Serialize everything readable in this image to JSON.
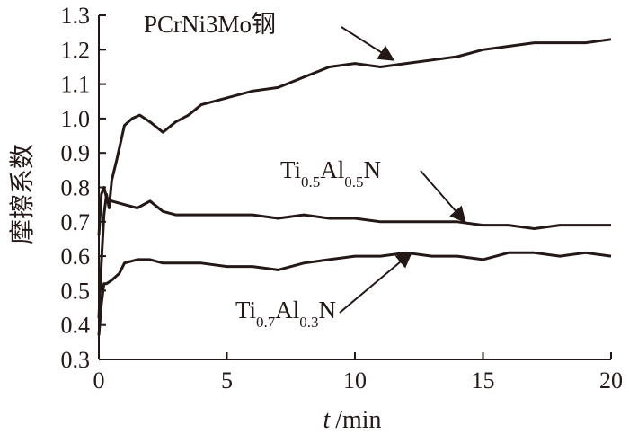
{
  "chart_data": {
    "type": "line",
    "title": "",
    "xlabel_var": "t",
    "xlabel_unit": "/min",
    "ylabel": "摩擦系数",
    "xlim": [
      0,
      20
    ],
    "ylim": [
      0.3,
      1.3
    ],
    "xticks": [
      "0",
      "5",
      "10",
      "15",
      "20"
    ],
    "yticks": [
      "0.3",
      "0.4",
      "0.5",
      "0.6",
      "0.7",
      "0.8",
      "0.9",
      "1.0",
      "1.1",
      "1.2",
      "1.3"
    ],
    "grid": false,
    "line_color": "#231815",
    "annotations": [
      {
        "base": "PCrNi3Mo钢",
        "points_to": {
          "x": 11.5,
          "y": 1.17
        }
      },
      {
        "base": "Ti",
        "sub1": "0.5",
        "mid": "Al",
        "sub2": "0.5",
        "tail": "N",
        "points_to": {
          "x": 14.3,
          "y": 0.7
        }
      },
      {
        "base": "Ti",
        "sub1": "0.7",
        "mid": "Al",
        "sub2": "0.3",
        "tail": "N",
        "points_to": {
          "x": 12.2,
          "y": 0.61
        }
      }
    ],
    "series": [
      {
        "x": [
          0,
          0.1,
          0.2,
          0.3,
          0.4,
          0.5,
          0.7,
          1.0,
          1.3,
          1.6,
          2.0,
          2.5,
          3.0,
          3.5,
          4.0,
          5.0,
          6.0,
          7.0,
          8.0,
          9.0,
          10.0,
          11.0,
          12.0,
          13.0,
          14.0,
          15.0,
          16.0,
          17.0,
          18.0,
          19.0,
          20.0
        ],
        "values": [
          0.42,
          0.58,
          0.72,
          0.78,
          0.74,
          0.82,
          0.88,
          0.98,
          1.0,
          1.01,
          0.99,
          0.96,
          0.99,
          1.01,
          1.04,
          1.06,
          1.08,
          1.09,
          1.12,
          1.15,
          1.16,
          1.15,
          1.16,
          1.17,
          1.18,
          1.2,
          1.21,
          1.22,
          1.22,
          1.22,
          1.23
        ]
      },
      {
        "x": [
          0,
          0.1,
          0.2,
          0.3,
          0.5,
          1.0,
          1.5,
          2.0,
          2.5,
          3.0,
          4.0,
          5.0,
          6.0,
          7.0,
          8.0,
          9.0,
          10.0,
          11.0,
          12.0,
          13.0,
          14.0,
          15.0,
          16.0,
          17.0,
          18.0,
          19.0,
          20.0
        ],
        "values": [
          0.66,
          0.78,
          0.8,
          0.77,
          0.76,
          0.75,
          0.74,
          0.76,
          0.73,
          0.72,
          0.72,
          0.72,
          0.72,
          0.71,
          0.72,
          0.71,
          0.71,
          0.7,
          0.7,
          0.7,
          0.7,
          0.69,
          0.69,
          0.68,
          0.69,
          0.69,
          0.69
        ]
      },
      {
        "x": [
          0,
          0.1,
          0.2,
          0.3,
          0.5,
          0.8,
          1.0,
          1.5,
          2.0,
          2.5,
          3.0,
          4.0,
          5.0,
          6.0,
          7.0,
          8.0,
          9.0,
          10.0,
          11.0,
          12.0,
          13.0,
          14.0,
          15.0,
          16.0,
          17.0,
          18.0,
          19.0,
          20.0
        ],
        "values": [
          0.37,
          0.46,
          0.52,
          0.52,
          0.53,
          0.55,
          0.58,
          0.59,
          0.59,
          0.58,
          0.58,
          0.58,
          0.57,
          0.57,
          0.56,
          0.58,
          0.59,
          0.6,
          0.6,
          0.61,
          0.6,
          0.6,
          0.59,
          0.61,
          0.61,
          0.6,
          0.61,
          0.6
        ]
      }
    ]
  }
}
